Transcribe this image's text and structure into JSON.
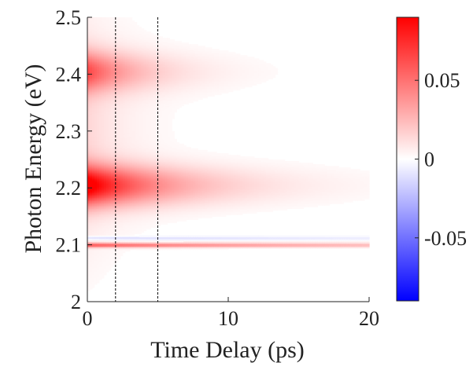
{
  "chart_data": [
    {
      "type": "heatmap",
      "xlabel": "Time Delay (ps)",
      "ylabel": "Photon Energy (eV)",
      "xlim": [
        0,
        20
      ],
      "ylim": [
        2.0,
        2.5
      ],
      "x_ticks": [
        0,
        10,
        20
      ],
      "x_tick_labels": [
        "0",
        "10",
        "20"
      ],
      "y_ticks": [
        2.0,
        2.1,
        2.2,
        2.3,
        2.4,
        2.5
      ],
      "y_tick_labels": [
        "2",
        "2.1",
        "2.2",
        "2.3",
        "2.4",
        "2.5"
      ],
      "vertical_reference_lines_ps": [
        2,
        5
      ],
      "features": [
        {
          "center_eV": 2.205,
          "width_eV": 0.035,
          "peak_value": 0.09,
          "decay_ps": 6,
          "sign": "positive"
        },
        {
          "center_eV": 2.405,
          "width_eV": 0.035,
          "peak_value": 0.055,
          "decay_ps": 4,
          "sign": "positive"
        },
        {
          "center_eV": 2.1,
          "width_eV": 0.004,
          "peak_value": 0.055,
          "decay_ps": 25,
          "sign": "positive"
        },
        {
          "center_eV": 2.112,
          "width_eV": 0.003,
          "peak_value": -0.015,
          "decay_ps": 25,
          "sign": "negative"
        }
      ],
      "colorbar": {
        "range": [
          -0.09,
          0.09
        ],
        "ticks": [
          0.05,
          0,
          -0.05
        ],
        "tick_labels": [
          "0.05",
          "0",
          "-0.05"
        ],
        "colors": {
          "high": "#ff0000",
          "mid": "#ffffff",
          "low": "#0000ff"
        }
      }
    }
  ]
}
